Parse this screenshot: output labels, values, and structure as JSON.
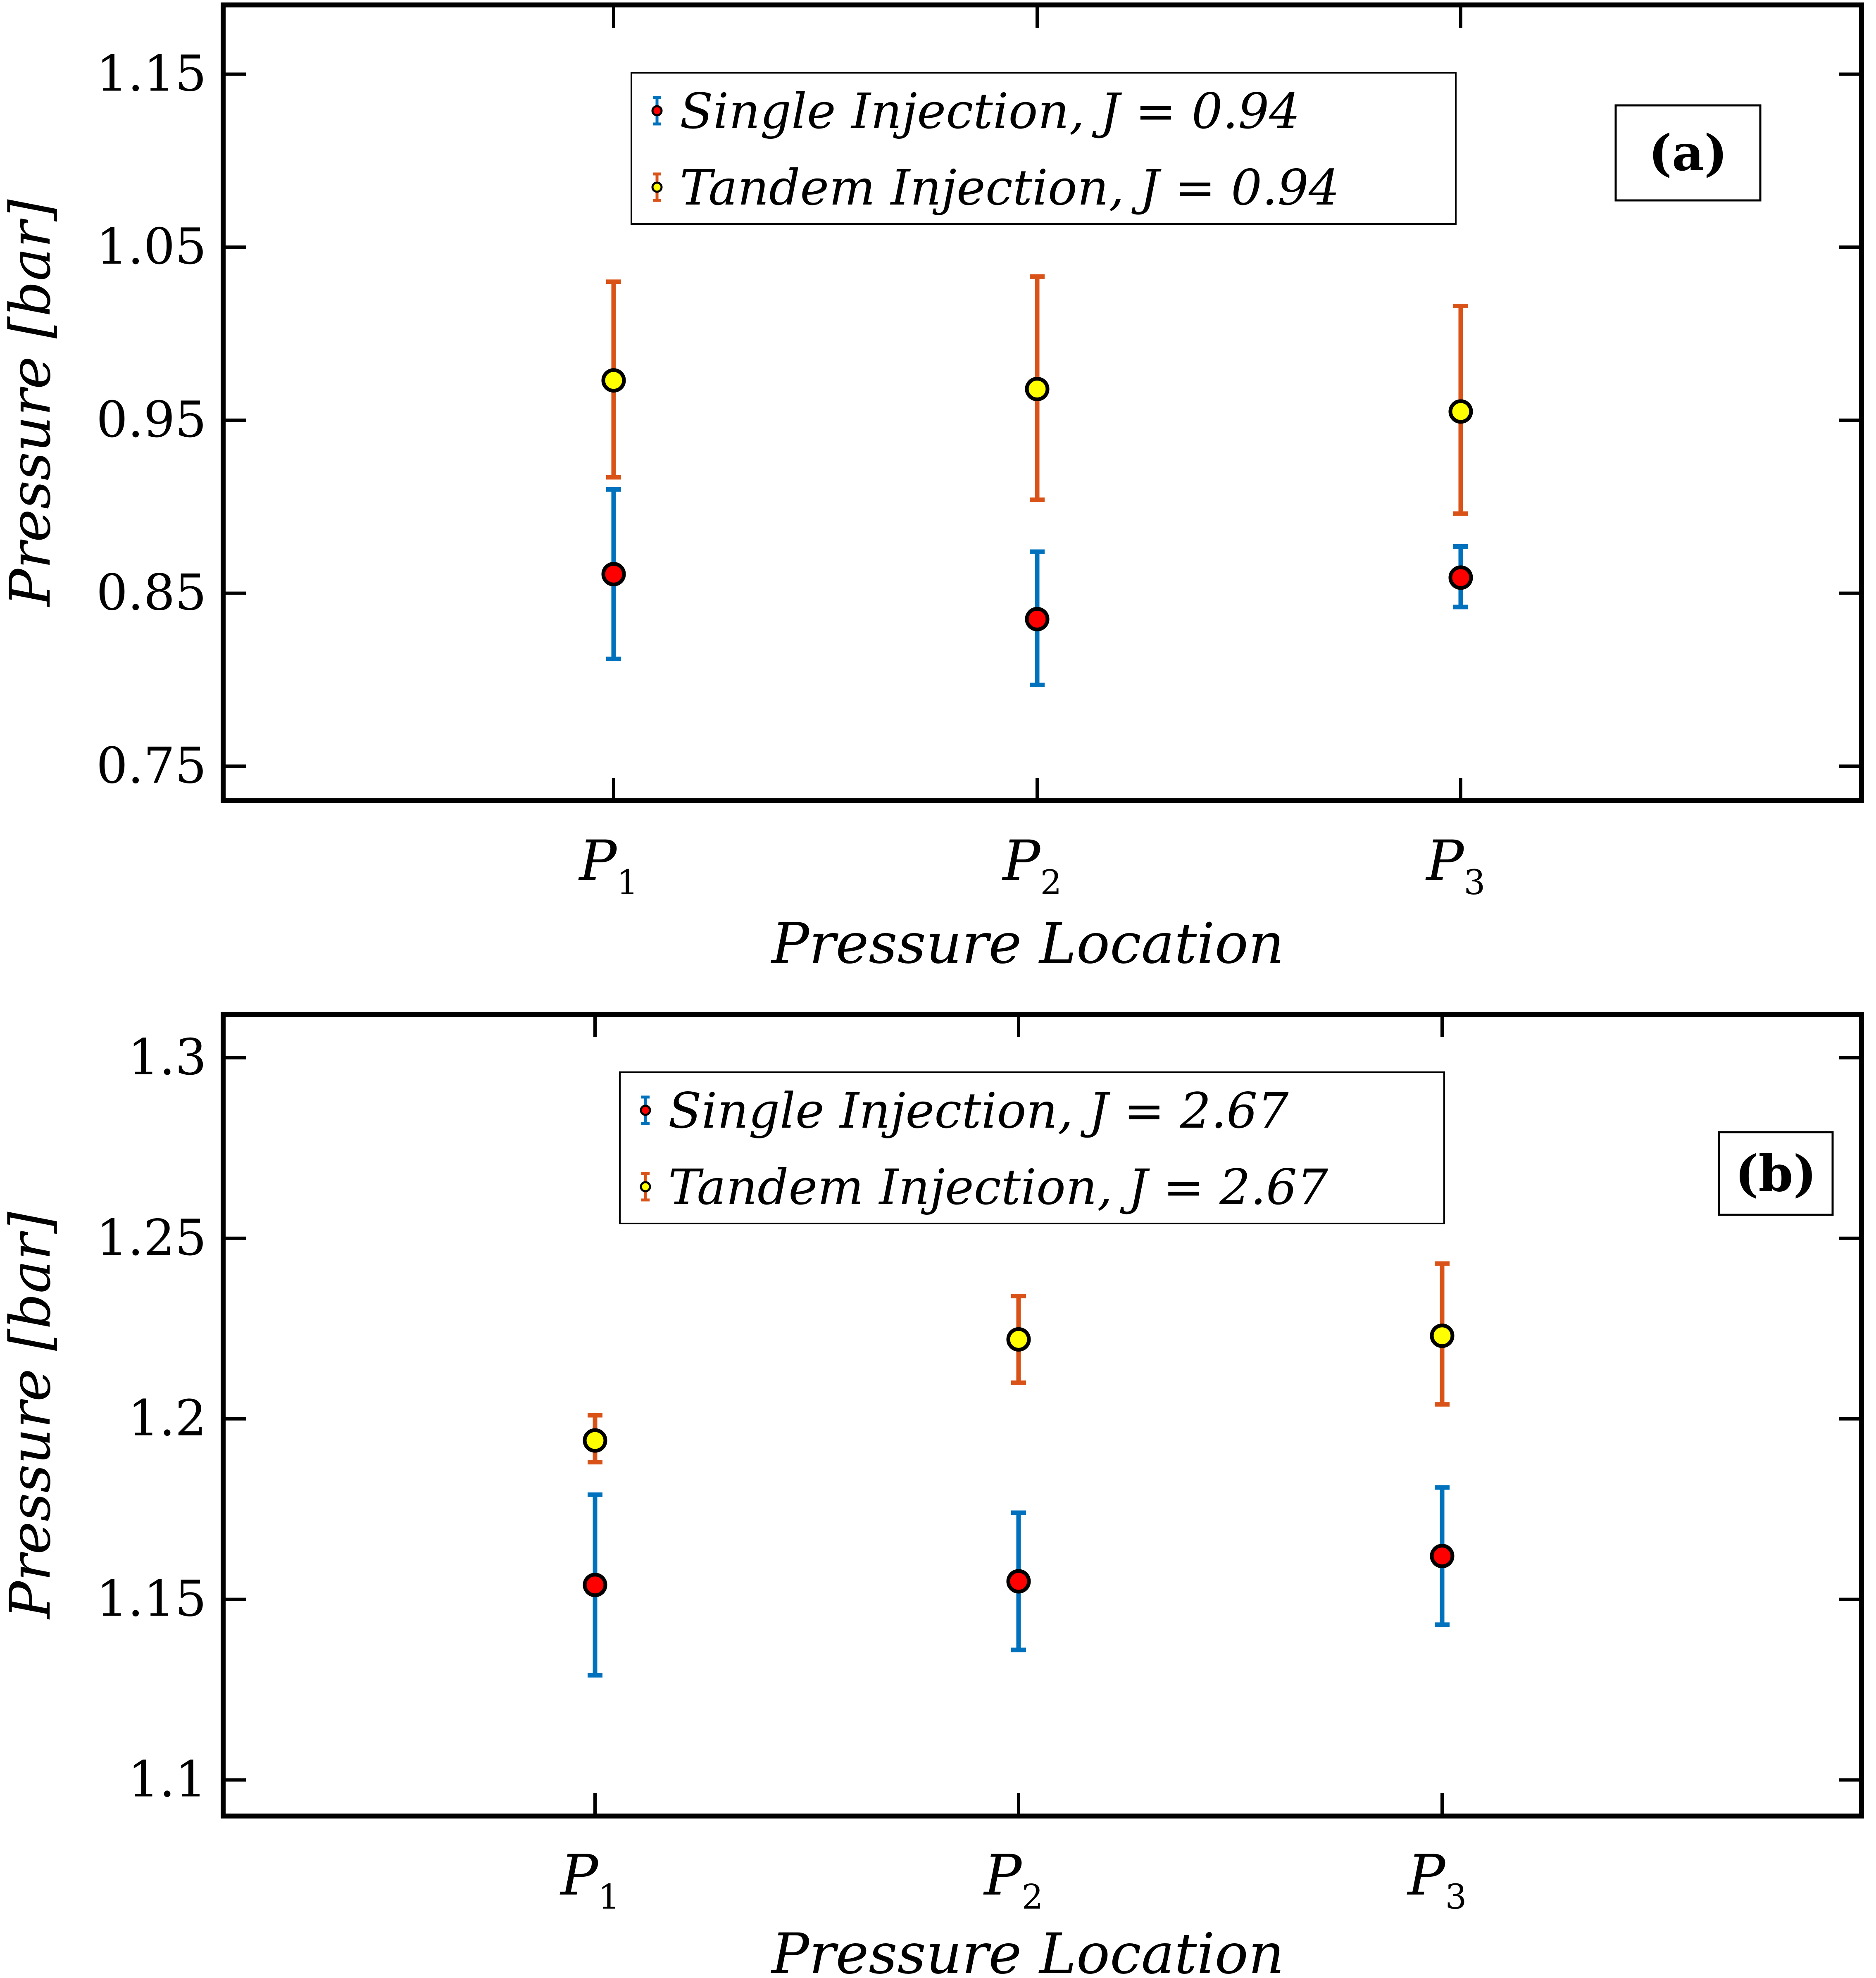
{
  "chart_data": [
    {
      "type": "scatter",
      "panel_label": "(a)",
      "xlabel": "Pressure Location",
      "ylabel": "Pressure [bar]",
      "categories": [
        {
          "main": "P",
          "sub": "1"
        },
        {
          "main": "P",
          "sub": "2"
        },
        {
          "main": "P",
          "sub": "3"
        }
      ],
      "ylim": [
        0.73,
        1.19
      ],
      "yticks": [
        0.75,
        0.85,
        0.95,
        1.05,
        1.15
      ],
      "ytick_labels": [
        "0.75",
        "0.85",
        "0.95",
        "1.05",
        "1.15"
      ],
      "legend_position": "top-center",
      "series": [
        {
          "name": "Single Injection",
          "legend": "Single Injection, J = 0.94",
          "marker_color": "#ff0000",
          "errorbar_color": "#0072bd",
          "values": [
            0.861,
            0.835,
            0.859
          ],
          "lower": [
            0.812,
            0.797,
            0.842
          ],
          "upper": [
            0.91,
            0.874,
            0.877
          ]
        },
        {
          "name": "Tandem Injection",
          "legend": "Tandem Injection, J = 0.94",
          "marker_color": "#ffff00",
          "errorbar_color": "#d95319",
          "values": [
            0.973,
            0.968,
            0.955
          ],
          "lower": [
            0.917,
            0.904,
            0.896
          ],
          "upper": [
            1.03,
            1.033,
            1.016
          ]
        }
      ]
    },
    {
      "type": "scatter",
      "panel_label": "(b)",
      "xlabel": "Pressure Location",
      "ylabel": "Pressure [bar]",
      "categories": [
        {
          "main": "P",
          "sub": "1"
        },
        {
          "main": "P",
          "sub": "2"
        },
        {
          "main": "P",
          "sub": "3"
        }
      ],
      "ylim": [
        1.09,
        1.312
      ],
      "yticks": [
        1.1,
        1.15,
        1.2,
        1.25,
        1.3
      ],
      "ytick_labels": [
        "1.1",
        "1.15",
        "1.2",
        "1.25",
        "1.3"
      ],
      "legend_position": "top-center",
      "series": [
        {
          "name": "Single Injection",
          "legend": "Single Injection, J = 2.67",
          "marker_color": "#ff0000",
          "errorbar_color": "#0072bd",
          "values": [
            1.154,
            1.155,
            1.162
          ],
          "lower": [
            1.129,
            1.136,
            1.143
          ],
          "upper": [
            1.179,
            1.174,
            1.181
          ]
        },
        {
          "name": "Tandem Injection",
          "legend": "Tandem Injection, J = 2.67",
          "marker_color": "#ffff00",
          "errorbar_color": "#d95319",
          "values": [
            1.194,
            1.222,
            1.223
          ],
          "lower": [
            1.188,
            1.21,
            1.204
          ],
          "upper": [
            1.201,
            1.234,
            1.243
          ]
        }
      ]
    }
  ]
}
